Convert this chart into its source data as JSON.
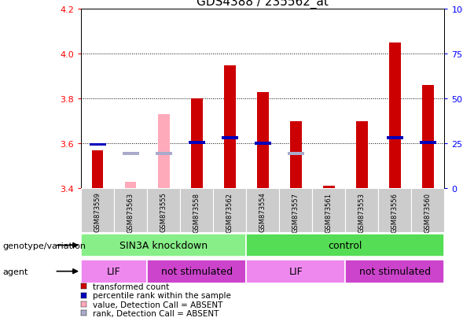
{
  "title": "GDS4388 / 235562_at",
  "samples": [
    "GSM873559",
    "GSM873563",
    "GSM873555",
    "GSM873558",
    "GSM873562",
    "GSM873554",
    "GSM873557",
    "GSM873561",
    "GSM873553",
    "GSM873556",
    "GSM873560"
  ],
  "red_values": [
    3.57,
    null,
    null,
    3.8,
    3.95,
    3.83,
    3.7,
    3.41,
    3.7,
    4.05,
    3.86
  ],
  "pink_values": [
    null,
    3.43,
    3.73,
    null,
    null,
    null,
    null,
    null,
    null,
    null,
    null
  ],
  "blue_values": [
    3.595,
    null,
    null,
    3.605,
    3.625,
    3.6,
    null,
    null,
    null,
    3.625,
    3.605
  ],
  "lightblue_values": [
    null,
    3.555,
    3.555,
    null,
    null,
    null,
    3.555,
    null,
    null,
    null,
    null
  ],
  "ylim": [
    3.4,
    4.2
  ],
  "yticks": [
    3.4,
    3.6,
    3.8,
    4.0,
    4.2
  ],
  "right_yticks": [
    0,
    25,
    50,
    75,
    100
  ],
  "right_ytick_labels": [
    "0",
    "25",
    "50",
    "75",
    "100%"
  ],
  "bar_bottom": 3.4,
  "red_color": "#cc0000",
  "pink_color": "#ffaabb",
  "blue_color": "#0000bb",
  "lightblue_color": "#aaaacc",
  "plot_bg": "#ffffff",
  "genotype_groups": [
    {
      "label": "SIN3A knockdown",
      "start": 0,
      "end": 4,
      "color": "#88ee88"
    },
    {
      "label": "control",
      "start": 5,
      "end": 10,
      "color": "#55dd55"
    }
  ],
  "agent_groups": [
    {
      "label": "LIF",
      "start": 0,
      "end": 1,
      "color": "#ee88ee"
    },
    {
      "label": "not stimulated",
      "start": 2,
      "end": 4,
      "color": "#cc44cc"
    },
    {
      "label": "LIF",
      "start": 5,
      "end": 7,
      "color": "#ee88ee"
    },
    {
      "label": "not stimulated",
      "start": 8,
      "end": 10,
      "color": "#cc44cc"
    }
  ],
  "legend_items": [
    {
      "label": "transformed count",
      "color": "#cc0000"
    },
    {
      "label": "percentile rank within the sample",
      "color": "#0000bb"
    },
    {
      "label": "value, Detection Call = ABSENT",
      "color": "#ffaabb"
    },
    {
      "label": "rank, Detection Call = ABSENT",
      "color": "#aaaacc"
    }
  ],
  "left_labels": [
    "genotype/variation",
    "agent"
  ],
  "sample_area_color": "#cccccc",
  "sample_area_bg": "#dddddd"
}
